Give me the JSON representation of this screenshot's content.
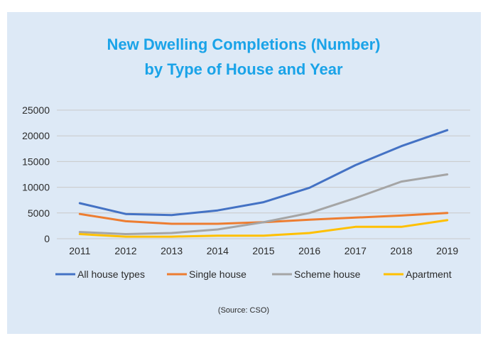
{
  "chart_data": {
    "type": "line",
    "title_lines": [
      "New Dwelling Completions (Number)",
      "by Type of House and Year"
    ],
    "x": [
      "2011",
      "2012",
      "2013",
      "2014",
      "2015",
      "2016",
      "2017",
      "2018",
      "2019"
    ],
    "yticks": [
      "0",
      "5000",
      "10000",
      "15000",
      "20000",
      "25000"
    ],
    "ylim": [
      0,
      25000
    ],
    "grid": true,
    "legend_position": "bottom",
    "series": [
      {
        "name": "All house types",
        "color": "#4472c4",
        "values": [
          6900,
          4800,
          4600,
          5500,
          7100,
          9900,
          14300,
          18000,
          21100
        ]
      },
      {
        "name": "Single house",
        "color": "#ed7d31",
        "values": [
          4800,
          3400,
          2900,
          2900,
          3200,
          3700,
          4100,
          4500,
          5000
        ]
      },
      {
        "name": "Scheme house",
        "color": "#a5a5a5",
        "values": [
          1300,
          900,
          1100,
          1800,
          3200,
          5000,
          7900,
          11100,
          12500
        ]
      },
      {
        "name": "Apartment",
        "color": "#ffc000",
        "values": [
          900,
          400,
          400,
          600,
          600,
          1100,
          2300,
          2300,
          3600
        ]
      }
    ],
    "source": "(Source: CSO)"
  }
}
